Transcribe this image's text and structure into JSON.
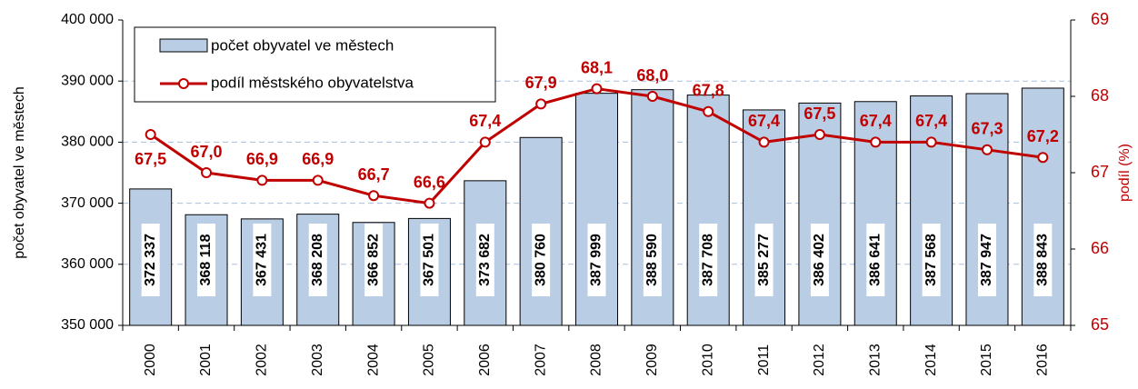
{
  "chart_data": {
    "type": "bar+line",
    "categories": [
      "2000",
      "2001",
      "2002",
      "2003",
      "2004",
      "2005",
      "2006",
      "2007",
      "2008",
      "2009",
      "2010",
      "2011",
      "2012",
      "2013",
      "2014",
      "2015",
      "2016"
    ],
    "series": [
      {
        "name": "počet obyvatel ve městech",
        "type": "bar",
        "color": "#b9cde5",
        "values": [
          372337,
          368118,
          367431,
          368208,
          366852,
          367501,
          373682,
          380760,
          387999,
          388590,
          387708,
          385277,
          386402,
          386641,
          387568,
          387947,
          388843
        ],
        "value_labels": [
          "372 337",
          "368 118",
          "367 431",
          "368 208",
          "366 852",
          "367 501",
          "373 682",
          "380 760",
          "387 999",
          "388 590",
          "387 708",
          "385 277",
          "386 402",
          "386 641",
          "387 568",
          "387 947",
          "388 843"
        ]
      },
      {
        "name": "podíl městského obyvatelstva",
        "type": "line",
        "color": "#c00000",
        "axis": "y2",
        "values": [
          67.5,
          67.0,
          66.9,
          66.9,
          66.7,
          66.6,
          67.4,
          67.9,
          68.1,
          68.0,
          67.8,
          67.4,
          67.5,
          67.4,
          67.4,
          67.3,
          67.2
        ],
        "value_labels": [
          "67,5",
          "67,0",
          "66,9",
          "66,9",
          "66,7",
          "66,6",
          "67,4",
          "67,9",
          "68,1",
          "68,0",
          "67,8",
          "67,4",
          "67,5",
          "67,4",
          "67,4",
          "67,3",
          "67,2"
        ]
      }
    ],
    "ylabel": "počet obyvatel ve městech",
    "y2label": "podíl (%)",
    "ylim": [
      350000,
      400000
    ],
    "yticks": [
      {
        "value": 350000,
        "label": "350 000"
      },
      {
        "value": 360000,
        "label": "360 000"
      },
      {
        "value": 370000,
        "label": "370 000"
      },
      {
        "value": 380000,
        "label": "380 000"
      },
      {
        "value": 390000,
        "label": "390 000"
      },
      {
        "value": 400000,
        "label": "400 000"
      }
    ],
    "y2lim": [
      65,
      69
    ],
    "y2ticks": [
      65,
      66,
      67,
      68,
      69
    ],
    "grid": true,
    "legend": "top-left"
  }
}
